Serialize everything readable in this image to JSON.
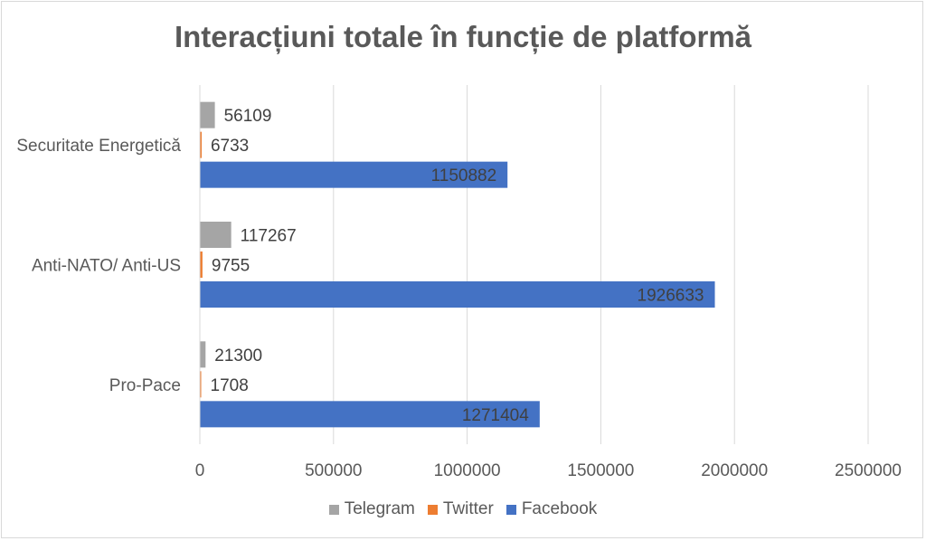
{
  "chart_data": {
    "type": "bar",
    "orientation": "horizontal",
    "title": "Interacțiuni totale în funcție de platformă",
    "categories": [
      "Securitate Energetică",
      "Anti-NATO/ Anti-US",
      "Pro-Pace"
    ],
    "series": [
      {
        "name": "Telegram",
        "color": "#a5a5a5",
        "values": [
          56109,
          117267,
          21300
        ]
      },
      {
        "name": "Twitter",
        "color": "#ed7d31",
        "values": [
          6733,
          9755,
          1708
        ]
      },
      {
        "name": "Facebook",
        "color": "#4472c4",
        "values": [
          1150882,
          1926633,
          1271404
        ]
      }
    ],
    "xlim": [
      0,
      2500000
    ],
    "x_ticks": [
      "0",
      "500000",
      "1000000",
      "1500000",
      "2000000",
      "2500000"
    ],
    "grid": true,
    "legend_position": "bottom",
    "data_labels": true
  }
}
